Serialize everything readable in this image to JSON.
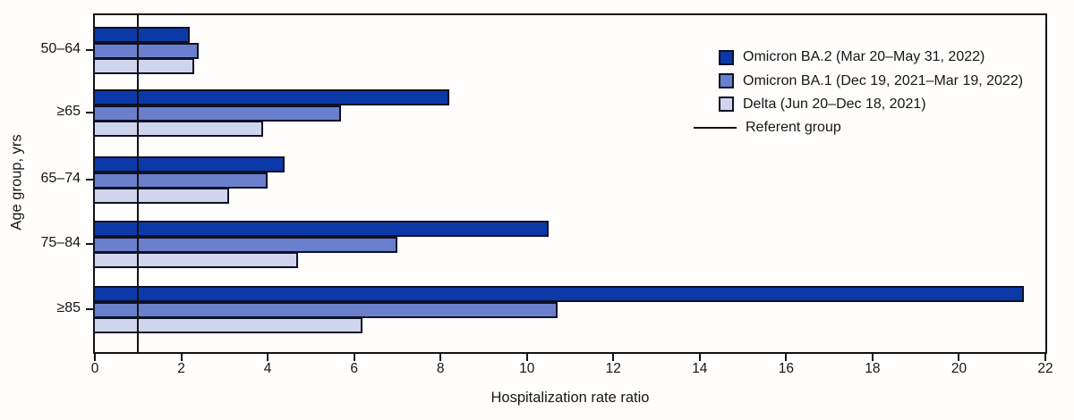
{
  "chart_data": {
    "type": "bar",
    "orientation": "horizontal",
    "title": "",
    "xlabel": "Hospitalization rate ratio",
    "ylabel": "Age group, yrs",
    "categories": [
      "50–64",
      "≥65",
      "65–74",
      "75–84",
      "≥85"
    ],
    "series": [
      {
        "name": "Omicron BA.2 (Mar 20–May 31, 2022)",
        "color": "#0b39a8",
        "values": [
          2.2,
          8.2,
          4.4,
          10.5,
          21.5
        ]
      },
      {
        "name": "Omicron BA.1 (Dec 19, 2021–Mar 19, 2022)",
        "color": "#6a80cc",
        "values": [
          2.4,
          5.7,
          4.0,
          7.0,
          10.7
        ]
      },
      {
        "name": "Delta (Jun 20–Dec 18, 2021)",
        "color": "#cfd5ec",
        "values": [
          2.3,
          3.9,
          3.1,
          4.7,
          6.2
        ]
      }
    ],
    "referent": {
      "label": "Referent group",
      "x": 1
    },
    "xlim": [
      0,
      22
    ],
    "xticks": [
      0,
      2,
      4,
      6,
      8,
      10,
      12,
      14,
      16,
      18,
      20,
      22
    ],
    "grid": false,
    "legend_position": "top-right",
    "axis_color": "#131313",
    "bar_border_color": "#0e1126"
  }
}
